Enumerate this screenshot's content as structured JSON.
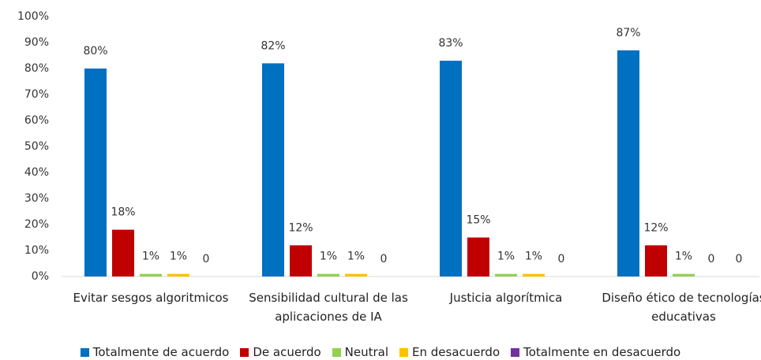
{
  "chart_data": {
    "type": "bar",
    "categories": [
      "Evitar sesgos algoritmicos",
      "Sensibilidad cultural de las aplicaciones de IA",
      "Justicia algorítmica",
      "Diseño ético de tecnologías educativas"
    ],
    "series": [
      {
        "name": "Totalmente de acuerdo",
        "color": "#0070c0",
        "values": [
          80,
          82,
          83,
          87
        ],
        "value_labels": [
          "80%",
          "82%",
          "83%",
          "87%"
        ]
      },
      {
        "name": "De acuerdo",
        "color": "#c00000",
        "values": [
          18,
          12,
          15,
          12
        ],
        "value_labels": [
          "18%",
          "12%",
          "15%",
          "12%"
        ]
      },
      {
        "name": "Neutral",
        "color": "#92d050",
        "values": [
          1,
          1,
          1,
          1
        ],
        "value_labels": [
          "1%",
          "1%",
          "1%",
          "1%"
        ]
      },
      {
        "name": "En desacuerdo",
        "color": "#ffc000",
        "values": [
          1,
          1,
          1,
          0
        ],
        "value_labels": [
          "1%",
          "1%",
          "1%",
          "0"
        ]
      },
      {
        "name": "Totalmente en desacuerdo",
        "color": "#7030a0",
        "values": [
          0,
          0,
          0,
          0
        ],
        "value_labels": [
          "0",
          "0",
          "0",
          "0"
        ]
      }
    ],
    "ylim": [
      0,
      100
    ],
    "yticks": [
      {
        "value": 0,
        "label": "0%"
      },
      {
        "value": 10,
        "label": "10%"
      },
      {
        "value": 20,
        "label": "20%"
      },
      {
        "value": 30,
        "label": "30%"
      },
      {
        "value": 40,
        "label": "40%"
      },
      {
        "value": 50,
        "label": "50%"
      },
      {
        "value": 60,
        "label": "60%"
      },
      {
        "value": 70,
        "label": "70%"
      },
      {
        "value": 80,
        "label": "80%"
      },
      {
        "value": 90,
        "label": "90%"
      },
      {
        "value": 100,
        "label": "100%"
      }
    ],
    "grid": false,
    "legend": "bottom"
  }
}
